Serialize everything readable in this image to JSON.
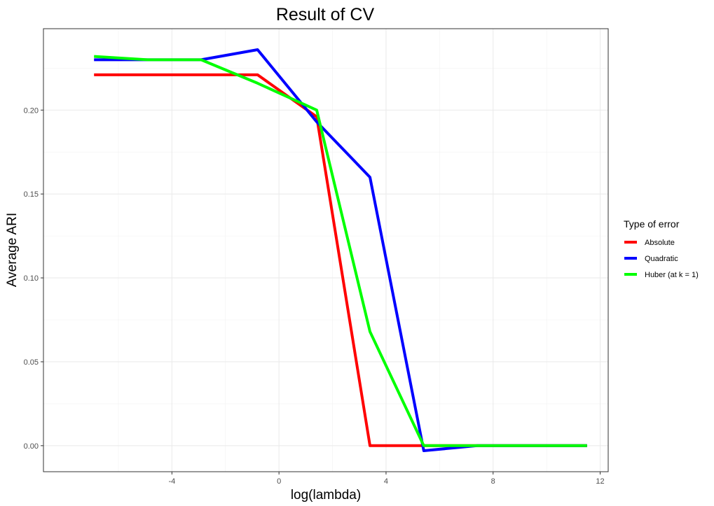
{
  "chart_data": {
    "type": "line",
    "title": "Result of CV",
    "xlabel": "log(lambda)",
    "ylabel": "Average ARI",
    "xlim": [
      -8.8,
      12.3
    ],
    "ylim": [
      -0.0155,
      0.2485
    ],
    "x_ticks": [
      -4,
      0,
      4,
      8,
      12
    ],
    "y_ticks": [
      0.0,
      0.05,
      0.1,
      0.15,
      0.2
    ],
    "x_tick_labels": [
      "-4",
      "0",
      "4",
      "8",
      "12"
    ],
    "y_tick_labels": [
      "0.00",
      "0.05",
      "0.10",
      "0.15",
      "0.20"
    ],
    "grid": true,
    "legend": {
      "title": "Type of error",
      "position": "right"
    },
    "series": [
      {
        "name": "Absolute",
        "color": "#ff0000",
        "x": [
          -6.91,
          -4.91,
          -2.91,
          -0.8,
          1.41,
          3.4,
          5.41,
          7.41,
          9.41,
          11.51
        ],
        "y": [
          0.221,
          0.221,
          0.221,
          0.221,
          0.196,
          0.0,
          0.0,
          0.0,
          0.0,
          0.0
        ]
      },
      {
        "name": "Quadratic",
        "color": "#0000ff",
        "x": [
          -6.91,
          -4.91,
          -2.91,
          -0.8,
          1.41,
          3.4,
          5.41,
          7.41,
          9.41,
          11.51
        ],
        "y": [
          0.23,
          0.23,
          0.23,
          0.236,
          0.193,
          0.16,
          -0.003,
          0.0,
          0.0,
          0.0
        ]
      },
      {
        "name": "Huber (at k = 1)",
        "color": "#00ff00",
        "x": [
          -6.91,
          -4.91,
          -2.91,
          -0.8,
          1.41,
          3.4,
          5.41,
          7.41,
          9.41,
          11.51
        ],
        "y": [
          0.232,
          0.23,
          0.23,
          0.216,
          0.2,
          0.068,
          0.0,
          0.0,
          0.0,
          0.0
        ]
      }
    ]
  }
}
